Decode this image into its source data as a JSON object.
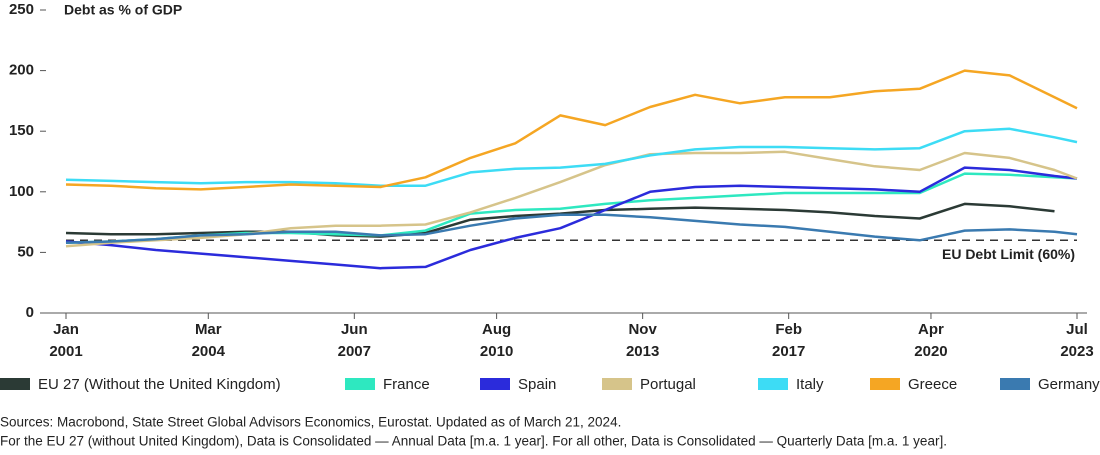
{
  "chart_data": {
    "type": "line",
    "y_label": "Debt as % of GDP",
    "x": [
      "2001-01",
      "2002-01",
      "2003-01",
      "2004-01",
      "2005-01",
      "2006-01",
      "2007-01",
      "2008-01",
      "2009-01",
      "2010-01",
      "2011-01",
      "2012-01",
      "2013-01",
      "2014-01",
      "2015-01",
      "2016-01",
      "2017-01",
      "2018-01",
      "2019-01",
      "2020-01",
      "2021-01",
      "2022-01",
      "2023-01",
      "2023-07"
    ],
    "xlim": [
      "2001-01",
      "2023-07"
    ],
    "xticks": [
      {
        "value": "2001-01",
        "label": "Jan 2001"
      },
      {
        "value": "2004-03",
        "label": "Mar 2004"
      },
      {
        "value": "2007-06",
        "label": "Jun 2007"
      },
      {
        "value": "2010-08",
        "label": "Aug 2010"
      },
      {
        "value": "2013-11",
        "label": "Nov 2013"
      },
      {
        "value": "2017-02",
        "label": "Feb 2017"
      },
      {
        "value": "2020-04",
        "label": "Apr 2020"
      },
      {
        "value": "2023-07",
        "label": "Jul 2023"
      }
    ],
    "ylim": [
      0,
      250
    ],
    "yticks": [
      0,
      50,
      100,
      150,
      200,
      250
    ],
    "reference_line": {
      "value": 60,
      "label": "EU Debt Limit (60%)"
    },
    "series": [
      {
        "name": "EU 27 (Without the United Kingdom)",
        "color": "#2b3a35",
        "values": [
          66,
          65,
          65,
          66,
          67,
          67,
          64,
          63,
          66,
          77,
          80,
          82,
          85,
          86,
          87,
          86,
          85,
          83,
          80,
          78,
          90,
          88,
          84,
          null
        ]
      },
      {
        "name": "France",
        "color": "#2ee8c0",
        "values": [
          58,
          59,
          61,
          64,
          66,
          66,
          65,
          64,
          68,
          82,
          85,
          86,
          90,
          93,
          95,
          97,
          99,
          99,
          99,
          99,
          115,
          114,
          112,
          111
        ]
      },
      {
        "name": "Spain",
        "color": "#2b2bdb",
        "values": [
          59,
          56,
          52,
          49,
          46,
          43,
          40,
          37,
          38,
          52,
          62,
          70,
          85,
          100,
          104,
          105,
          104,
          103,
          102,
          100,
          120,
          118,
          113,
          111
        ]
      },
      {
        "name": "Portugal",
        "color": "#d6c48a",
        "values": [
          55,
          58,
          60,
          62,
          65,
          70,
          72,
          72,
          73,
          83,
          95,
          108,
          122,
          131,
          132,
          132,
          133,
          127,
          121,
          118,
          132,
          128,
          118,
          111
        ]
      },
      {
        "name": "Italy",
        "color": "#3ddcf5",
        "values": [
          110,
          109,
          108,
          107,
          108,
          108,
          107,
          105,
          105,
          116,
          119,
          120,
          123,
          130,
          135,
          137,
          137,
          136,
          135,
          136,
          150,
          152,
          145,
          141
        ]
      },
      {
        "name": "Greece",
        "color": "#f5a623",
        "values": [
          106,
          105,
          103,
          102,
          104,
          106,
          105,
          104,
          112,
          128,
          140,
          163,
          155,
          170,
          180,
          173,
          178,
          178,
          183,
          185,
          200,
          196,
          178,
          169
        ]
      },
      {
        "name": "Germany",
        "color": "#3a7ab0",
        "values": [
          58,
          59,
          61,
          64,
          65,
          67,
          67,
          64,
          65,
          72,
          78,
          81,
          81,
          79,
          76,
          73,
          71,
          67,
          63,
          60,
          68,
          69,
          67,
          65
        ]
      }
    ],
    "notes": [
      "Sources: Macrobond, State Street Global Advisors Economics, Eurostat. Updated as of March 21, 2024.",
      "For the EU 27 (without United Kingdom), Data is Consolidated — Annual Data [m.a. 1 year]. For all other, Data is Consolidated — Quarterly Data [m.a. 1 year]."
    ]
  }
}
